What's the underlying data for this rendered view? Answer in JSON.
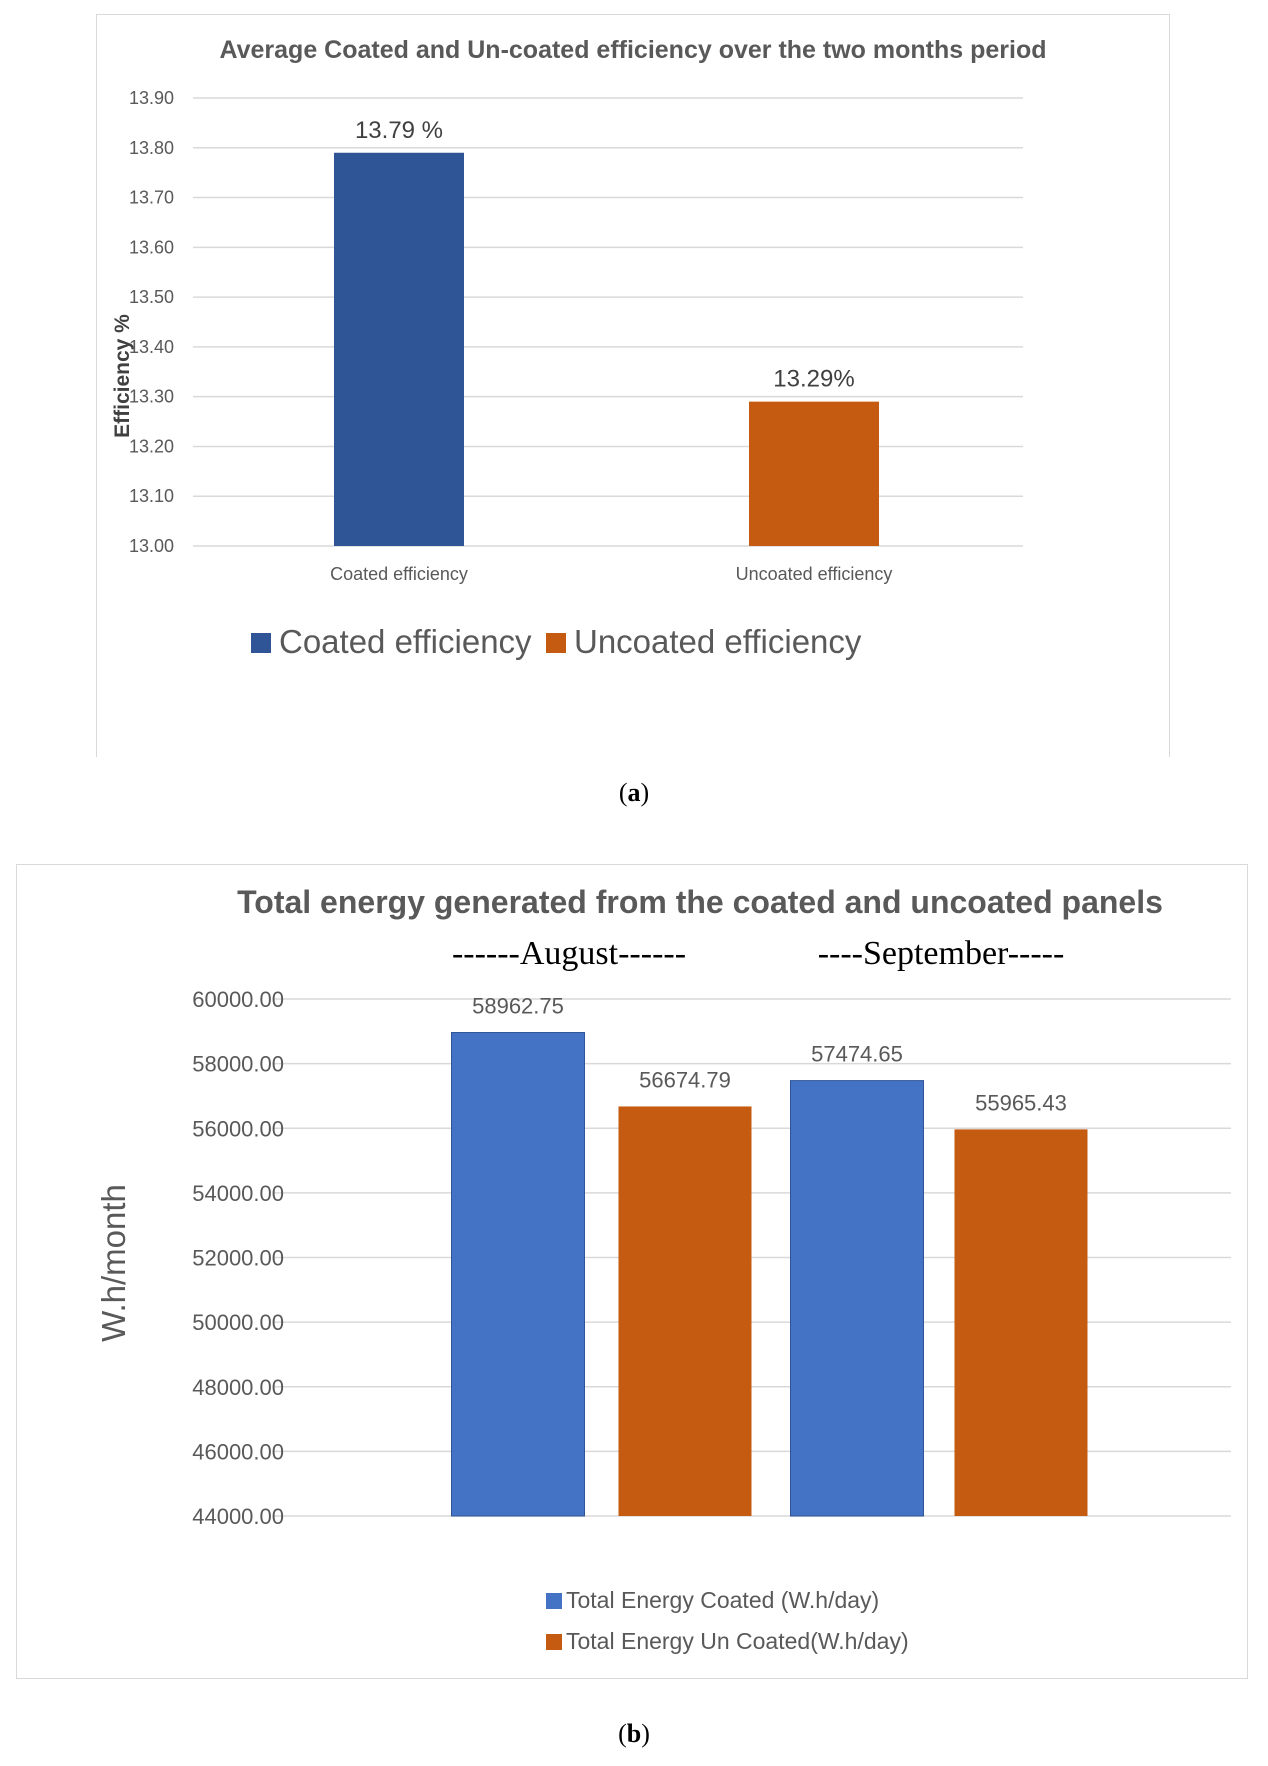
{
  "chart_data": [
    {
      "type": "bar",
      "title": "Average Coated and Un-coated efficiency over the two months period",
      "xlabel": "",
      "ylabel": "Efficiency %",
      "ylim": [
        13.0,
        13.9
      ],
      "yticks": [
        "13.00",
        "13.10",
        "13.20",
        "13.30",
        "13.40",
        "13.50",
        "13.60",
        "13.70",
        "13.80",
        "13.90"
      ],
      "categories": [
        "Coated efficiency",
        "Uncoated efficiency"
      ],
      "values": [
        13.79,
        13.29
      ],
      "data_labels": [
        "13.79 %",
        "13.29%"
      ],
      "colors": [
        "#2f5597",
        "#c55a11"
      ],
      "legend": [
        {
          "label": "Coated efficiency",
          "color": "#2f5597"
        },
        {
          "label": "Uncoated efficiency",
          "color": "#c55a11"
        }
      ],
      "legend_position": "bottom",
      "grid": true
    },
    {
      "type": "bar",
      "title": "Total energy generated from the coated and uncoated panels",
      "group_labels": [
        "------August------",
        "----September-----"
      ],
      "xlabel": "",
      "ylabel": "W.h/month",
      "ylim": [
        44000,
        60000
      ],
      "yticks": [
        "44000.00",
        "46000.00",
        "48000.00",
        "50000.00",
        "52000.00",
        "54000.00",
        "56000.00",
        "58000.00",
        "60000.00"
      ],
      "categories": [
        "August",
        "September"
      ],
      "series": [
        {
          "name": "Total Energy Coated (W.h/day)",
          "values": [
            58962.75,
            57474.65
          ],
          "labels": [
            "58962.75",
            "57474.65"
          ],
          "color": "#4472c4"
        },
        {
          "name": "Total Energy Un Coated(W.h/day)",
          "values": [
            56674.79,
            55965.43
          ],
          "labels": [
            "56674.79",
            "55965.43"
          ],
          "color": "#c55a11"
        }
      ],
      "legend_position": "bottom",
      "grid": true
    }
  ],
  "captions": {
    "a": {
      "open": "(",
      "letter": "a",
      "close": ")"
    },
    "b": {
      "open": "(",
      "letter": "b",
      "close": ")"
    }
  }
}
